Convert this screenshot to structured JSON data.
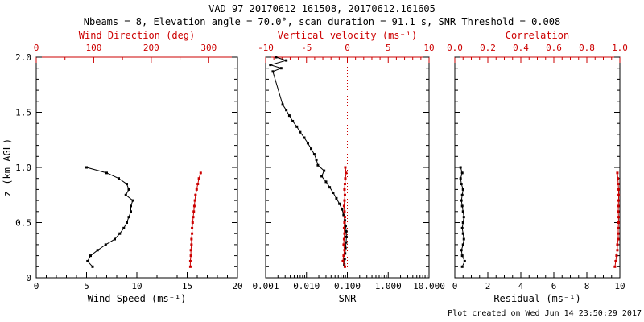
{
  "header": {
    "title": "VAD_97_20170612_161508, 20170612.161605",
    "subtitle": "Nbeams = 8, Elevation angle = 70.0°, scan duration = 91.1 s, SNR Threshold = 0.008"
  },
  "footer": {
    "created": "Plot created on Wed Jun 14 23:50:29 2017"
  },
  "colors": {
    "red": "#cc0000",
    "black": "#000000"
  },
  "axes": {
    "ylabel": "z (km AGL)",
    "ylim": [
      0,
      2
    ],
    "yticks": [
      0,
      0.5,
      1,
      1.5,
      2
    ],
    "ytick_labels": [
      "0",
      "0.5",
      "1.0",
      "1.5",
      "2.0"
    ],
    "yminors": [
      0.1,
      0.2,
      0.3,
      0.4,
      0.6,
      0.7,
      0.8,
      0.9,
      1.1,
      1.2,
      1.3,
      1.4,
      1.6,
      1.7,
      1.8,
      1.9
    ]
  },
  "chart_data": [
    {
      "type": "line",
      "panel": "wind",
      "xlabel": "Wind Speed (ms⁻¹)",
      "x2label": "Wind Direction (deg)",
      "xscale": "linear",
      "xlim": [
        0,
        20
      ],
      "xticks": [
        0,
        5,
        10,
        15,
        20
      ],
      "xtick_labels": [
        "0",
        "5",
        "10",
        "15",
        "20"
      ],
      "xminors": [
        1,
        2,
        3,
        4,
        6,
        7,
        8,
        9,
        11,
        12,
        13,
        14,
        16,
        17,
        18,
        19
      ],
      "x2lim": [
        0,
        350
      ],
      "x2ticks": [
        0,
        100,
        200,
        300
      ],
      "x2tick_labels": [
        "0",
        "100",
        "200",
        "300"
      ],
      "x2minors": [
        50,
        150,
        250
      ],
      "series": [
        {
          "name": "wind_speed",
          "axis": "x1",
          "color": "#000000",
          "z": [
            0.1,
            0.15,
            0.2,
            0.25,
            0.3,
            0.35,
            0.4,
            0.45,
            0.5,
            0.55,
            0.6,
            0.65,
            0.7,
            0.75,
            0.8,
            0.85,
            0.9,
            0.95,
            1.0
          ],
          "values": [
            5.6,
            5.1,
            5.4,
            6.1,
            6.9,
            7.8,
            8.3,
            8.7,
            9.0,
            9.2,
            9.4,
            9.4,
            9.6,
            8.9,
            9.2,
            9.0,
            8.2,
            7.0,
            5.0
          ]
        },
        {
          "name": "wind_direction",
          "axis": "x2",
          "color": "#cc0000",
          "z": [
            0.1,
            0.15,
            0.2,
            0.25,
            0.3,
            0.35,
            0.4,
            0.45,
            0.5,
            0.55,
            0.6,
            0.65,
            0.7,
            0.75,
            0.8,
            0.85,
            0.9,
            0.95
          ],
          "values": [
            268,
            268,
            269,
            269,
            270,
            270,
            271,
            271,
            272,
            273,
            274,
            275,
            276,
            277,
            279,
            281,
            283,
            286
          ]
        }
      ]
    },
    {
      "type": "line",
      "panel": "snr",
      "xlabel": "SNR",
      "x2label": "Vertical velocity (ms⁻¹)",
      "xscale": "log",
      "xlim": [
        0.001,
        10
      ],
      "xticks": [
        0.001,
        0.01,
        0.1,
        1,
        10
      ],
      "xtick_labels": [
        "0.001",
        "0.010",
        "0.100",
        "1.000",
        "10.000"
      ],
      "xminors": [
        0.002,
        0.003,
        0.004,
        0.005,
        0.006,
        0.007,
        0.008,
        0.009,
        0.02,
        0.03,
        0.04,
        0.05,
        0.06,
        0.07,
        0.08,
        0.09,
        0.2,
        0.3,
        0.4,
        0.5,
        0.6,
        0.7,
        0.8,
        0.9,
        2,
        3,
        4,
        5,
        6,
        7,
        8,
        9
      ],
      "x2lim": [
        -10,
        10
      ],
      "x2ticks": [
        -10,
        -5,
        0,
        5,
        10
      ],
      "x2tick_labels": [
        "-10",
        "-5",
        "0",
        "5",
        "10"
      ],
      "x2minors": [
        -9,
        -8,
        -7,
        -6,
        -4,
        -3,
        -2,
        -1,
        1,
        2,
        3,
        4,
        6,
        7,
        8,
        9
      ],
      "refline_x2": 0,
      "series": [
        {
          "name": "snr",
          "axis": "x1",
          "color": "#000000",
          "z": [
            2.0,
            1.97,
            1.93,
            1.9,
            1.87,
            1.57,
            1.52,
            1.47,
            1.42,
            1.37,
            1.32,
            1.27,
            1.22,
            1.17,
            1.12,
            1.07,
            1.02,
            0.97,
            0.92,
            0.87,
            0.82,
            0.77,
            0.72,
            0.67,
            0.62,
            0.57,
            0.52,
            0.47,
            0.42,
            0.37,
            0.32,
            0.27,
            0.22,
            0.17,
            0.12
          ],
          "values": [
            0.0018,
            0.0032,
            0.0013,
            0.0024,
            0.0015,
            0.0026,
            0.0032,
            0.0038,
            0.0046,
            0.0058,
            0.007,
            0.0088,
            0.0108,
            0.013,
            0.0155,
            0.0175,
            0.019,
            0.027,
            0.0235,
            0.03,
            0.037,
            0.045,
            0.054,
            0.064,
            0.074,
            0.081,
            0.087,
            0.091,
            0.094,
            0.095,
            0.093,
            0.09,
            0.088,
            0.086,
            0.084
          ]
        },
        {
          "name": "vertical_velocity",
          "axis": "x2",
          "color": "#cc0000",
          "z": [
            0.1,
            0.15,
            0.2,
            0.25,
            0.3,
            0.35,
            0.4,
            0.45,
            0.5,
            0.55,
            0.6,
            0.65,
            0.7,
            0.75,
            0.8,
            0.85,
            0.9,
            0.95,
            1.0
          ],
          "values": [
            -0.3,
            -0.55,
            -0.45,
            -0.35,
            -0.45,
            -0.4,
            -0.35,
            -0.4,
            -0.35,
            -0.3,
            -0.35,
            -0.4,
            -0.35,
            -0.3,
            -0.35,
            -0.3,
            -0.25,
            -0.15,
            -0.25
          ]
        }
      ]
    },
    {
      "type": "line",
      "panel": "residual",
      "xlabel": "Residual (ms⁻¹)",
      "x2label": "Correlation",
      "xscale": "linear",
      "xlim": [
        0,
        10
      ],
      "xticks": [
        0,
        2,
        4,
        6,
        8,
        10
      ],
      "xtick_labels": [
        "0",
        "2",
        "4",
        "6",
        "8",
        "10"
      ],
      "xminors": [
        0.5,
        1,
        1.5,
        2.5,
        3,
        3.5,
        4.5,
        5,
        5.5,
        6.5,
        7,
        7.5,
        8.5,
        9,
        9.5
      ],
      "x2lim": [
        0,
        1
      ],
      "x2ticks": [
        0,
        0.2,
        0.4,
        0.6,
        0.8,
        1.0
      ],
      "x2tick_labels": [
        "0.0",
        "0.2",
        "0.4",
        "0.6",
        "0.8",
        "1.0"
      ],
      "x2minors": [
        0.05,
        0.1,
        0.15,
        0.25,
        0.3,
        0.35,
        0.45,
        0.5,
        0.55,
        0.65,
        0.7,
        0.75,
        0.85,
        0.9,
        0.95
      ],
      "series": [
        {
          "name": "residual",
          "axis": "x1",
          "color": "#000000",
          "z": [
            0.1,
            0.15,
            0.2,
            0.25,
            0.3,
            0.35,
            0.4,
            0.45,
            0.5,
            0.55,
            0.6,
            0.65,
            0.7,
            0.75,
            0.8,
            0.85,
            0.9,
            0.95,
            1.0
          ],
          "values": [
            0.45,
            0.6,
            0.45,
            0.4,
            0.5,
            0.55,
            0.5,
            0.45,
            0.5,
            0.55,
            0.5,
            0.45,
            0.4,
            0.45,
            0.5,
            0.4,
            0.35,
            0.45,
            0.35
          ]
        },
        {
          "name": "correlation",
          "axis": "x2",
          "color": "#cc0000",
          "z": [
            0.1,
            0.15,
            0.2,
            0.25,
            0.3,
            0.35,
            0.4,
            0.45,
            0.5,
            0.55,
            0.6,
            0.65,
            0.7,
            0.75,
            0.8,
            0.85,
            0.9,
            0.95
          ],
          "values": [
            0.97,
            0.975,
            0.98,
            0.985,
            0.985,
            0.99,
            0.99,
            0.99,
            0.992,
            0.992,
            0.99,
            0.991,
            0.992,
            0.993,
            0.992,
            0.99,
            0.988,
            0.985
          ]
        }
      ]
    }
  ]
}
